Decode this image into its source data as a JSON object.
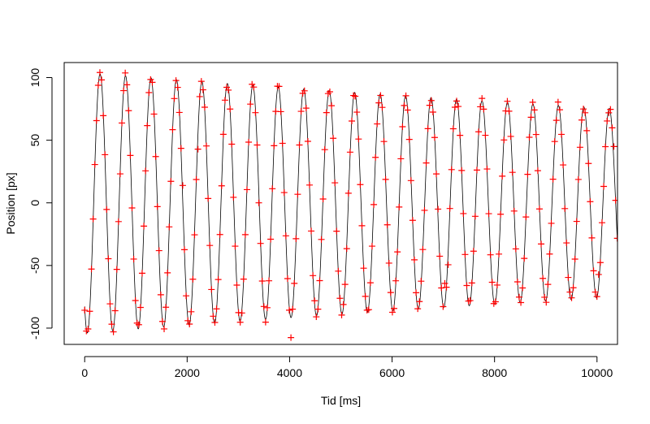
{
  "chart_data": {
    "type": "scatter",
    "title": "",
    "xlabel": "Tid [ms]",
    "ylabel": "Position [px]",
    "xlim": [
      -400,
      10400
    ],
    "ylim": [
      -113,
      112
    ],
    "xticks": [
      0,
      2000,
      4000,
      6000,
      8000,
      10000
    ],
    "yticks": [
      -100,
      -50,
      0,
      50,
      100
    ],
    "yticks_rotated": true,
    "grid": false,
    "legend": "none",
    "colors": {
      "points": "#ff0000",
      "curve": "#000000",
      "axes": "#000000"
    },
    "series": [
      {
        "kind": "line",
        "model": "damped_cosine",
        "params": {
          "amplitude_start": 104,
          "amplitude_end": 75,
          "period_ms": 497,
          "first_peak_ms": 300,
          "x_start": 0,
          "x_end": 10400
        }
      },
      {
        "kind": "points",
        "marker": "+",
        "sample_interval_ms": 33,
        "x_start": 0,
        "x_end": 10400,
        "noise_px": 3,
        "model": "sampled_from_line"
      }
    ]
  }
}
